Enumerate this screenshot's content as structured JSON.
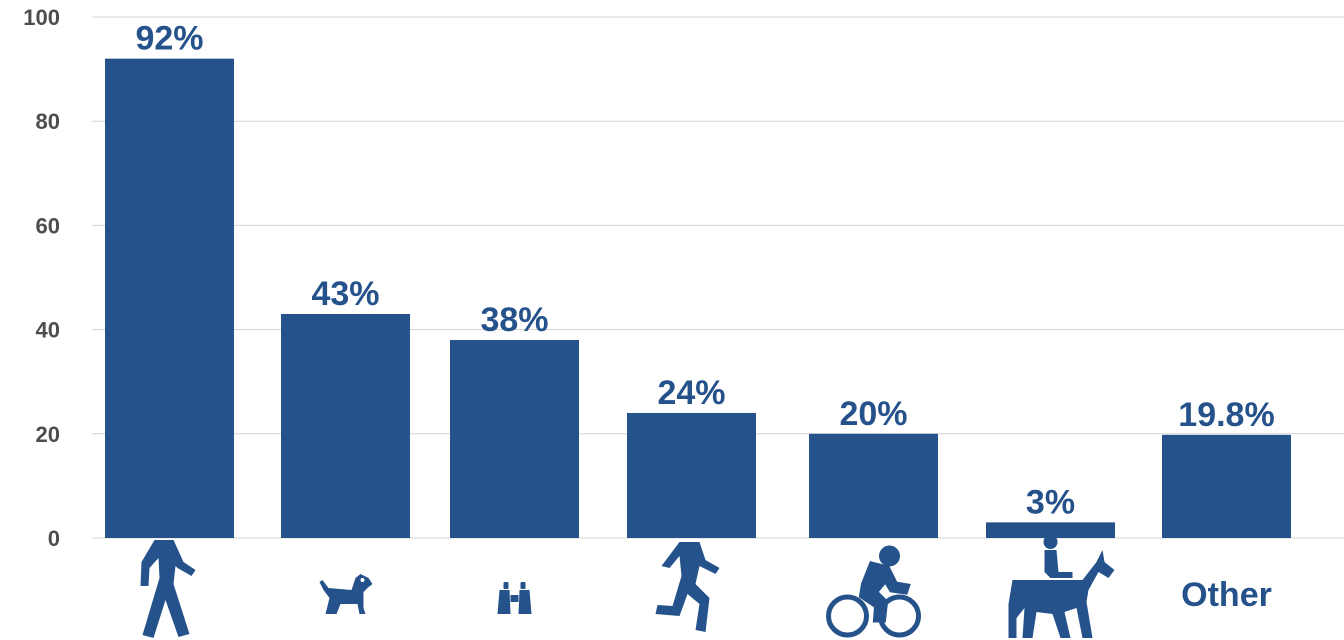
{
  "chart_data": {
    "type": "bar",
    "categories": [
      "walking-icon",
      "dog-icon",
      "binoculars-icon",
      "running-icon",
      "cycling-icon",
      "horseback-riding-icon",
      "Other"
    ],
    "category_kinds": [
      "icon",
      "icon",
      "icon",
      "icon",
      "icon",
      "icon",
      "text"
    ],
    "values": [
      92,
      43,
      38,
      24,
      20,
      3,
      19.8
    ],
    "value_labels": [
      "92%",
      "43%",
      "38%",
      "24%",
      "20%",
      "3%",
      "19.8%"
    ],
    "y_ticks": [
      "0",
      "20",
      "40",
      "60",
      "80",
      "100"
    ],
    "ylim": [
      0,
      100
    ],
    "grid": true,
    "legend": "none",
    "colors": {
      "bar": "#26528c",
      "label": "#26528c",
      "tick": "#4d4d4d",
      "grid": "#d4d4d4"
    }
  }
}
